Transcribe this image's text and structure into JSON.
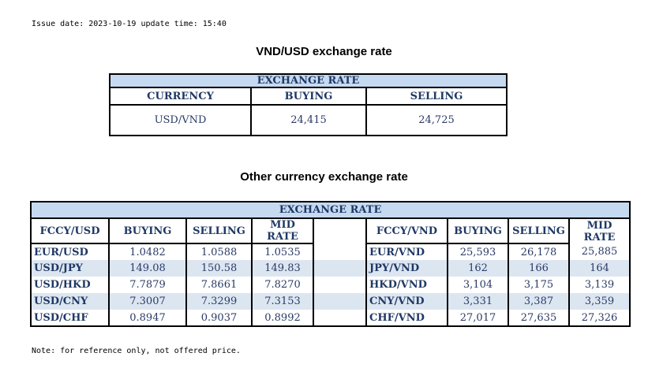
{
  "issue_info": "Issue date: 2023-10-19 update time: 15:40",
  "usd_section": {
    "title": "VND/USD exchange rate",
    "header": "EXCHANGE RATE",
    "columns": [
      "CURRENCY",
      "BUYING",
      "SELLING"
    ],
    "row": {
      "currency": "USD/VND",
      "buying": "24,415",
      "selling": "24,725"
    }
  },
  "other_section": {
    "title": "Other currency exchange rate",
    "header": "EXCHANGE  RATE",
    "left_columns": [
      "FCCY/USD",
      "BUYING",
      "SELLING",
      "MID RATE"
    ],
    "right_columns": [
      "FCCY/VND",
      "BUYING",
      "SELLING",
      "MID RATE"
    ],
    "rows": [
      {
        "l": [
          "EUR/USD",
          "1.0482",
          "1.0588",
          "1.0535"
        ],
        "r": [
          "EUR/VND",
          "25,593",
          "26,178",
          "25,885"
        ]
      },
      {
        "l": [
          "USD/JPY",
          "149.08",
          "150.58",
          "149.83"
        ],
        "r": [
          "JPY/VND",
          "162",
          "166",
          "164"
        ]
      },
      {
        "l": [
          "USD/HKD",
          "7.7879",
          "7.8661",
          "7.8270"
        ],
        "r": [
          "HKD/VND",
          "3,104",
          "3,175",
          "3,139"
        ]
      },
      {
        "l": [
          "USD/CNY",
          "7.3007",
          "7.3299",
          "7.3153"
        ],
        "r": [
          "CNY/VND",
          "3,331",
          "3,387",
          "3,359"
        ]
      },
      {
        "l": [
          "USD/CHF",
          "0.8947",
          "0.9037",
          "0.8992"
        ],
        "r": [
          "CHF/VND",
          "27,017",
          "27,635",
          "27,326"
        ]
      }
    ]
  },
  "note": "Note: for reference only, not offered price.",
  "colors": {
    "header_bg": "#c5d9f1",
    "stripe_bg": "#dce6f1",
    "text": "#1f3864"
  }
}
